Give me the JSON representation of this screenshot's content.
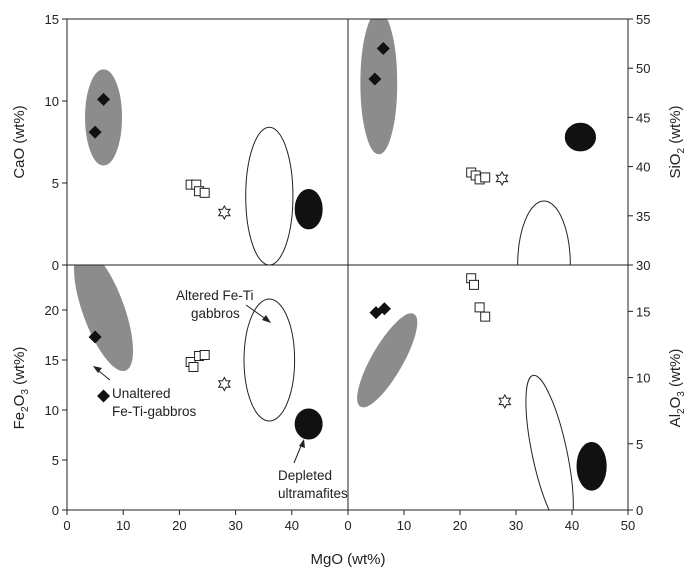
{
  "chart_data": [
    {
      "panel": "top-left",
      "type": "scatter",
      "xlabel": "MgO (wt%)",
      "ylabel": "CaO (wt%)",
      "xlim": [
        0,
        50
      ],
      "ylim": [
        0,
        15
      ],
      "yticks": [
        "0",
        "5",
        "10",
        "15"
      ],
      "fields": [
        {
          "fill": "gray",
          "cx": 6.5,
          "cy": 9.0,
          "rx": 3.2,
          "ry": 2.9
        },
        {
          "fill": "open",
          "cx": 36.0,
          "cy": 4.2,
          "rx": 4.2,
          "ry": 4.2
        },
        {
          "fill": "black",
          "cx": 43.0,
          "cy": 3.4,
          "rx": 2.4,
          "ry": 1.2
        }
      ],
      "series": [
        {
          "marker": "diamond",
          "x": [
            5.0,
            6.5
          ],
          "y": [
            8.1,
            10.1
          ]
        },
        {
          "marker": "square",
          "x": [
            22.0,
            23.0,
            23.5,
            24.5
          ],
          "y": [
            4.9,
            4.9,
            4.5,
            4.4
          ]
        },
        {
          "marker": "star",
          "x": [
            28.0
          ],
          "y": [
            3.2
          ]
        }
      ]
    },
    {
      "panel": "top-right",
      "type": "scatter",
      "xlabel": "MgO (wt%)",
      "ylabel": "SiO2 (wt%)",
      "xlim": [
        0,
        50
      ],
      "ylim": [
        30,
        55
      ],
      "yticks": [
        "30",
        "35",
        "40",
        "45",
        "50",
        "55"
      ],
      "fields": [
        {
          "fill": "gray",
          "cx": 5.5,
          "cy": 48.5,
          "rx": 3.2,
          "ry": 7.2
        },
        {
          "fill": "black",
          "cx": 41.5,
          "cy": 43.0,
          "rx": 2.7,
          "ry": 1.4
        },
        {
          "fill": "open",
          "cx": 35.0,
          "cy": 30.0,
          "rx": 4.7,
          "ry": 6.5
        }
      ],
      "series": [
        {
          "marker": "diamond",
          "x": [
            4.8,
            6.3
          ],
          "y": [
            48.9,
            52.0
          ]
        },
        {
          "marker": "square",
          "x": [
            22.0,
            22.8,
            23.5,
            24.5
          ],
          "y": [
            39.4,
            39.1,
            38.7,
            38.9
          ]
        },
        {
          "marker": "star",
          "x": [
            27.5
          ],
          "y": [
            38.8
          ]
        }
      ]
    },
    {
      "panel": "bottom-left",
      "type": "scatter",
      "xlabel": "MgO (wt%)",
      "ylabel": "Fe2O3 (wt%)",
      "xlim": [
        0,
        50
      ],
      "ylim": [
        0,
        24.5
      ],
      "yticks": [
        "0",
        "5",
        "10",
        "15",
        "20"
      ],
      "fields": [
        {
          "fill": "gray",
          "cx": 6.5,
          "cy": 20.0,
          "rx": 3.6,
          "ry": 6.4,
          "rotate": -20
        },
        {
          "fill": "open",
          "cx": 36.0,
          "cy": 15.0,
          "rx": 4.5,
          "ry": 6.1
        },
        {
          "fill": "black",
          "cx": 43.0,
          "cy": 8.6,
          "rx": 2.4,
          "ry": 1.5
        }
      ],
      "series": [
        {
          "marker": "diamond",
          "x": [
            5.0,
            6.5
          ],
          "y": [
            17.3,
            11.4
          ]
        },
        {
          "marker": "square",
          "x": [
            22.0,
            22.5,
            23.5,
            24.5
          ],
          "y": [
            14.8,
            14.3,
            15.4,
            15.5
          ]
        },
        {
          "marker": "star",
          "x": [
            28.0
          ],
          "y": [
            12.6
          ]
        }
      ],
      "annotations": [
        {
          "lines": [
            "Altered Fe-Ti",
            "gabbros"
          ]
        },
        {
          "lines": [
            "Unaltered",
            "Fe-Ti-gabbros"
          ]
        },
        {
          "lines": [
            "Depleted",
            "ultramafites"
          ]
        }
      ]
    },
    {
      "panel": "bottom-right",
      "type": "scatter",
      "xlabel": "MgO (wt%)",
      "ylabel": "Al2O3 (wt%)",
      "xlim": [
        0,
        50
      ],
      "ylim": [
        0,
        18.5
      ],
      "yticks": [
        "0",
        "5",
        "10",
        "15"
      ],
      "fields": [
        {
          "fill": "gray",
          "cx": 7.0,
          "cy": 11.3,
          "rx": 2.7,
          "ry": 4.0,
          "rotate": 30
        },
        {
          "fill": "open",
          "cx": 36.0,
          "cy": 4.3,
          "rx": 3.1,
          "ry": 6.0,
          "rotate": -12
        },
        {
          "fill": "black",
          "cx": 43.5,
          "cy": 3.3,
          "rx": 2.6,
          "ry": 1.8
        }
      ],
      "series": [
        {
          "marker": "diamond",
          "x": [
            5.0,
            6.5
          ],
          "y": [
            14.9,
            15.2
          ]
        },
        {
          "marker": "square",
          "x": [
            22.0,
            22.5,
            23.5,
            24.5
          ],
          "y": [
            17.5,
            17.0,
            15.3,
            14.6
          ]
        },
        {
          "marker": "star",
          "x": [
            28.0
          ],
          "y": [
            8.2
          ]
        }
      ]
    }
  ],
  "x_ticks": [
    "0",
    "10",
    "20",
    "30",
    "40",
    "0",
    "10",
    "20",
    "30",
    "40",
    "50"
  ],
  "x_axis_label": "MgO (wt%)",
  "y_axis_labels": {
    "top_left": "CaO (wt%)",
    "top_right": {
      "pre": "SiO",
      "sub": "2",
      "post": " (wt%)"
    },
    "bottom_left": {
      "pre": "Fe",
      "sub1": "2",
      "mid": "O",
      "sub2": "3",
      "post": " (wt%)"
    },
    "bottom_right": {
      "pre": "Al",
      "sub1": "2",
      "mid": "O",
      "sub2": "3",
      "post": " (wt%)"
    }
  },
  "colors": {
    "gray_field": "#8c8c8c",
    "black_field": "#111111",
    "axis": "#222222"
  }
}
